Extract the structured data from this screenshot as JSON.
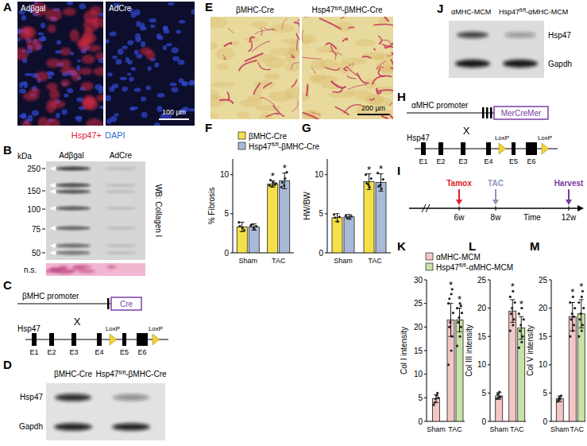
{
  "panels": {
    "A": {
      "label": "A",
      "images": [
        "Adβgal",
        "AdCre"
      ],
      "scale_bar": "100 µm",
      "stains": [
        {
          "text": "Hsp47+",
          "color": "#e0203a"
        },
        {
          "text": "DAPI",
          "color": "#2f6fd0"
        }
      ]
    },
    "B": {
      "label": "B",
      "unit": "kDa",
      "markers": [
        250,
        150,
        100,
        75,
        50
      ],
      "lanes": [
        "Adβgal",
        "AdCre"
      ],
      "antibody": "WB: Collagen I",
      "loading": "n.s."
    },
    "C": {
      "label": "C",
      "promoter": "βMHC promoter",
      "driver": "Cre",
      "cross": "X",
      "gene": "Hsp47",
      "exons": [
        "E1",
        "E2",
        "E3",
        "E4",
        "E5",
        "E6"
      ],
      "lox": [
        "LoxP",
        "LoxP"
      ]
    },
    "D": {
      "label": "D",
      "lanes": [
        "βMHC-Cre",
        "Hsp47fl/fl-βMHC-Cre"
      ],
      "rows": [
        "Hsp47",
        "Gapdh"
      ]
    },
    "E": {
      "label": "E",
      "images": [
        "βMHC-Cre",
        "Hsp47fl/fl-βMHC-Cre"
      ],
      "scale_bar": "200 µm"
    },
    "F": {
      "label": "F"
    },
    "G": {
      "label": "G"
    },
    "H": {
      "label": "H",
      "promoter": "αMHC promoter",
      "driver": "MerCreMer",
      "cross": "X",
      "gene": "Hsp47",
      "exons": [
        "E1",
        "E2",
        "E3",
        "E4",
        "E5",
        "E6"
      ],
      "lox": [
        "LoxP",
        "LoxP"
      ]
    },
    "I": {
      "label": "I",
      "axis_label": "Time",
      "ticks": [
        {
          "value": 6,
          "label": "6w"
        },
        {
          "value": 8,
          "label": "8w"
        },
        {
          "value": 12,
          "label": "12w"
        }
      ],
      "events": [
        {
          "text": "Tamox",
          "at": 6,
          "color": "#e0202a"
        },
        {
          "text": "TAC",
          "at": 8,
          "color": "#8a9ab8"
        },
        {
          "text": "Harvest",
          "at": 12,
          "color": "#7a3aa0"
        }
      ]
    },
    "J": {
      "label": "J",
      "lanes": [
        "αMHC-MCM",
        "Hsp47fl/fl-αMHC-MCM"
      ],
      "rows": [
        "Hsp47",
        "Gapdh"
      ]
    },
    "K": {
      "label": "K"
    },
    "L": {
      "label": "L"
    },
    "M": {
      "label": "M"
    }
  },
  "chart_data": [
    {
      "type": "bar",
      "ylabel": "% Fibrosis",
      "categories": [
        "Sham",
        "TAC"
      ],
      "ylim": [
        0,
        12
      ],
      "yticks": [
        0,
        5,
        10
      ],
      "legend": "top",
      "series": [
        {
          "name": "βMHC-Cre",
          "color": "#f5e04a",
          "values": [
            3.3,
            8.8
          ],
          "errors": [
            0.6,
            0.4
          ],
          "points": [
            [
              3.9,
              3.2,
              2.9,
              3.4
            ],
            [
              8.6,
              9.0,
              8.7,
              9.3,
              8.5,
              8.9
            ]
          ],
          "significance": [
            null,
            "*"
          ]
        },
        {
          "name": "Hsp47fl/fl-βMHC-Cre",
          "color": "#a9bad8",
          "values": [
            3.3,
            9.2
          ],
          "errors": [
            0.4,
            1.0
          ],
          "points": [
            [
              3.5,
              3.0,
              3.4,
              3.6,
              3.2
            ],
            [
              8.4,
              9.5,
              10.3,
              9.0,
              8.6
            ]
          ],
          "significance": [
            null,
            "*"
          ]
        }
      ]
    },
    {
      "type": "bar",
      "ylabel": "HW/BW",
      "categories": [
        "Sham",
        "TAC"
      ],
      "ylim": [
        0,
        12
      ],
      "yticks": [
        0,
        5,
        10
      ],
      "series": [
        {
          "color": "#f5e04a",
          "values": [
            4.5,
            9.1
          ],
          "errors": [
            0.5,
            1.0
          ],
          "points": [
            [
              4.9,
              4.0,
              4.6,
              4.5
            ],
            [
              10.0,
              8.4,
              9.5,
              8.9,
              8.7
            ]
          ],
          "significance": [
            null,
            "*"
          ]
        },
        {
          "color": "#a9bad8",
          "values": [
            4.6,
            9.0
          ],
          "errors": [
            0.3,
            1.1
          ],
          "points": [
            [
              4.8,
              4.4,
              4.7,
              4.5
            ],
            [
              10.2,
              8.2,
              9.4,
              8.5,
              8.7
            ]
          ],
          "significance": [
            null,
            "*"
          ]
        }
      ]
    },
    {
      "type": "bar",
      "ylabel": "Col I intensity",
      "categories": [
        "Sham",
        "TAC"
      ],
      "ylim": [
        0,
        30
      ],
      "yticks": [
        0,
        5,
        10,
        15,
        20,
        25,
        30
      ],
      "legend": "top",
      "series": [
        {
          "name": "αMHC-MCM",
          "color": "#f3c6c6",
          "values": [
            4.8,
            21.5
          ],
          "errors": [
            0.8,
            3.5
          ],
          "points": [
            [
              3.5,
              5.5,
              6.0,
              4.0,
              4.8,
              5.0
            ],
            [
              12,
              15,
              18,
              20,
              21,
              23,
              25,
              27,
              28,
              26
            ]
          ],
          "significance": [
            null,
            "*"
          ]
        },
        {
          "name": "Hsp47fl/fl-αMHC-MCM",
          "color": "#c9e2a8",
          "values": [
            null,
            21.5
          ],
          "errors": [
            null,
            2.5
          ],
          "points": [
            null,
            [
              16,
              18,
              20,
              21,
              22,
              23,
              24,
              25,
              24.5
            ]
          ],
          "significance": [
            null,
            "*"
          ]
        }
      ]
    },
    {
      "type": "bar",
      "ylabel": "Col III intensity",
      "categories": [
        "Sham",
        "TAC"
      ],
      "ylim": [
        0,
        25
      ],
      "yticks": [
        0,
        5,
        10,
        15,
        20,
        25
      ],
      "series": [
        {
          "color": "#f3c6c6",
          "values": [
            4.5,
            19.5
          ],
          "errors": [
            0.6,
            2.0
          ],
          "points": [
            [
              4.0,
              5.2,
              4.3,
              4.8,
              4.2
            ],
            [
              16,
              17,
              18,
              19,
              20,
              21,
              22,
              23
            ]
          ],
          "significance": [
            null,
            "*"
          ]
        },
        {
          "color": "#c9e2a8",
          "values": [
            null,
            16.5
          ],
          "errors": [
            null,
            2.0
          ],
          "points": [
            null,
            [
              13,
              14,
              15,
              16,
              17,
              18,
              19,
              20
            ]
          ],
          "significance": [
            null,
            "*"
          ]
        }
      ]
    },
    {
      "type": "bar",
      "ylabel": "Col V intensity",
      "categories": [
        "Sham",
        "TAC"
      ],
      "ylim": [
        0,
        25
      ],
      "yticks": [
        0,
        5,
        10,
        15,
        20,
        25
      ],
      "series": [
        {
          "color": "#f3c6c6",
          "values": [
            4.0,
            18.5
          ],
          "errors": [
            0.5,
            2.5
          ],
          "points": [
            [
              3.5,
              4.0,
              4.5,
              3.8,
              4.2
            ],
            [
              15,
              16,
              17,
              18,
              19,
              20,
              21,
              22,
              18.5
            ]
          ],
          "significance": [
            null,
            "*"
          ]
        },
        {
          "color": "#c9e2a8",
          "values": [
            null,
            19.0
          ],
          "errors": [
            null,
            2.5
          ],
          "points": [
            null,
            [
              15,
              16,
              17,
              18,
              19,
              20,
              21,
              22,
              23
            ]
          ],
          "significance": [
            null,
            "*"
          ]
        }
      ]
    }
  ]
}
